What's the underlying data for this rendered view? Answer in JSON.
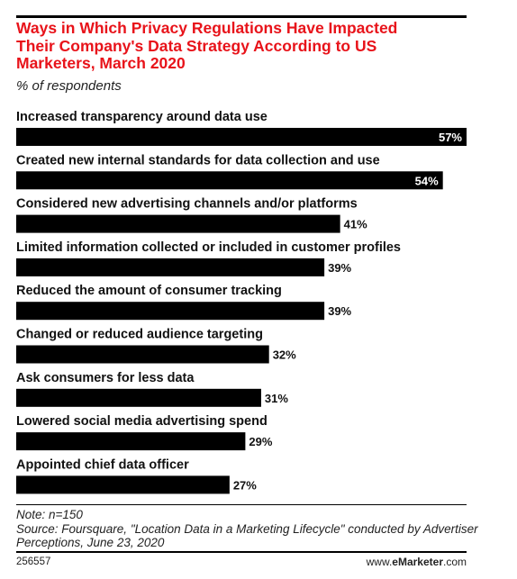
{
  "header": {
    "title": "Ways in Which Privacy Regulations Have Impacted\nTheir Company's Data Strategy According to US\nMarketers, March 2020",
    "subtitle": "% of respondents"
  },
  "chart_data": {
    "type": "bar",
    "orientation": "horizontal",
    "title": "Ways in Which Privacy Regulations Have Impacted Their Company's Data Strategy According to US Marketers, March 2020",
    "subtitle": "% of respondents",
    "categories": [
      "Increased transparency around data use",
      "Created new internal standards for data collection and use",
      "Considered new advertising channels and/or platforms",
      "Limited information collected or included in customer profiles",
      "Reduced the amount of consumer tracking",
      "Changed or reduced audience targeting",
      "Ask consumers for less data",
      "Lowered social media advertising spend",
      "Appointed chief data officer"
    ],
    "values": [
      57,
      54,
      41,
      39,
      39,
      32,
      31,
      29,
      27
    ],
    "value_labels": [
      "57%",
      "54%",
      "41%",
      "39%",
      "39%",
      "32%",
      "31%",
      "29%",
      "27%"
    ],
    "xlim": [
      0,
      57
    ],
    "bar_color": "#000000",
    "grid": false
  },
  "footer": {
    "note": "Note: n=150",
    "source": "Source: Foursquare, \"Location Data in a Marketing Lifecycle\" conducted by Advertiser Perceptions, June 23, 2020",
    "chart_id": "256557",
    "brand_prefix": "www.",
    "brand_name": "eMarketer",
    "brand_suffix": ".com"
  },
  "colors": {
    "title": "#e8131a",
    "bar": "#000000"
  }
}
